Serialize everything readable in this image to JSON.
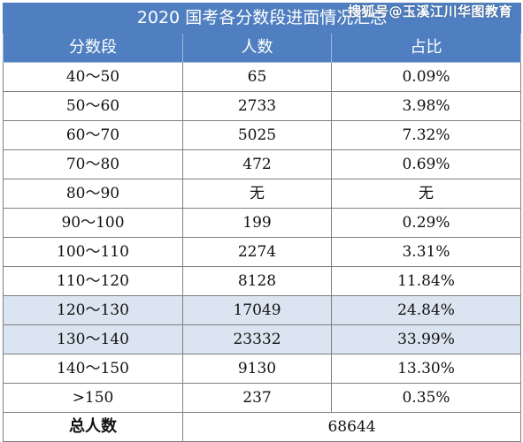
{
  "table": {
    "title": "2020 国考各分数段进面情况汇总",
    "headers": [
      "分数段",
      "人数",
      "占比"
    ],
    "rows": [
      {
        "range": "40～50",
        "count": "65",
        "ratio": "0.09%",
        "highlight": false
      },
      {
        "range": "50～60",
        "count": "2733",
        "ratio": "3.98%",
        "highlight": false
      },
      {
        "range": "60～70",
        "count": "5025",
        "ratio": "7.32%",
        "highlight": false
      },
      {
        "range": "70～80",
        "count": "472",
        "ratio": "0.69%",
        "highlight": false
      },
      {
        "range": "80～90",
        "count": "无",
        "ratio": "无",
        "highlight": false
      },
      {
        "range": "90～100",
        "count": "199",
        "ratio": "0.29%",
        "highlight": false
      },
      {
        "range": "100～110",
        "count": "2274",
        "ratio": "3.31%",
        "highlight": false
      },
      {
        "range": "110～120",
        "count": "8128",
        "ratio": "11.84%",
        "highlight": false
      },
      {
        "range": "120～130",
        "count": "17049",
        "ratio": "24.84%",
        "highlight": true
      },
      {
        "range": "130～140",
        "count": "23332",
        "ratio": "33.99%",
        "highlight": true
      },
      {
        "range": "140～150",
        "count": "9130",
        "ratio": "13.30%",
        "highlight": false
      },
      {
        "range": ">150",
        "count": "237",
        "ratio": "0.35%",
        "highlight": false
      }
    ],
    "total_label": "总人数",
    "total_value": "68644"
  },
  "watermark": "搜狐号@玉溪江川华图教育",
  "colors": {
    "header_bg": "#4f7fc0",
    "highlight_bg": "#dbe5f1",
    "border": "#7f7f7f"
  }
}
